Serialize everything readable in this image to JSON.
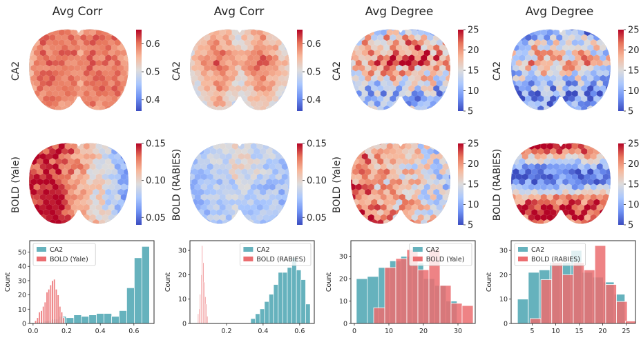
{
  "figure": {
    "column_titles": [
      "Avg Corr",
      "Avg Corr",
      "Avg Degree",
      "Avg Degree"
    ],
    "row_labels": [
      [
        "CA2",
        "CA2",
        "CA2",
        "CA2"
      ],
      [
        "BOLD (Yale)",
        "BOLD (RABIES)",
        "BOLD (Yale)",
        "BOLD (RABIES)"
      ]
    ],
    "colormap": [
      "#3b4cc0",
      "#6f92f3",
      "#aac7fd",
      "#dddcdc",
      "#f7b89c",
      "#e7745b",
      "#b40426"
    ]
  },
  "chart_data": [
    {
      "type": "heatmap",
      "panel": "row1-col1",
      "title": "Avg Corr",
      "row_label": "CA2",
      "colorbar": {
        "range": [
          0.36,
          0.65
        ],
        "ticks": [
          0.4,
          0.5,
          0.6
        ],
        "tick_labels": [
          "0.4",
          "0.5",
          "0.6"
        ]
      },
      "pattern": "hot-bilateral"
    },
    {
      "type": "heatmap",
      "panel": "row1-col2",
      "title": "Avg Corr",
      "row_label": "CA2",
      "colorbar": {
        "range": [
          0.36,
          0.65
        ],
        "ticks": [
          0.4,
          0.5,
          0.6
        ],
        "tick_labels": [
          "0.4",
          "0.5",
          "0.6"
        ]
      },
      "pattern": "warm-bilateral"
    },
    {
      "type": "heatmap",
      "panel": "row1-col3",
      "title": "Avg Degree",
      "row_label": "CA2",
      "colorbar": {
        "range": [
          5,
          25
        ],
        "ticks": [
          5,
          10,
          15,
          20,
          25
        ],
        "tick_labels": [
          "5",
          "10",
          "15",
          "20",
          "25"
        ]
      },
      "pattern": "mixed-bilateral"
    },
    {
      "type": "heatmap",
      "panel": "row1-col4",
      "title": "Avg Degree",
      "row_label": "CA2",
      "colorbar": {
        "range": [
          5,
          25
        ],
        "ticks": [
          5,
          10,
          15,
          20,
          25
        ],
        "tick_labels": [
          "5",
          "10",
          "15",
          "20",
          "25"
        ]
      },
      "pattern": "mixed-cool"
    },
    {
      "type": "heatmap",
      "panel": "row2-col1",
      "row_label": "BOLD (Yale)",
      "colorbar": {
        "range": [
          0.04,
          0.15
        ],
        "ticks": [
          0.05,
          0.1,
          0.15
        ],
        "tick_labels": [
          "0.05",
          "0.10",
          "0.15"
        ]
      },
      "pattern": "hot-left"
    },
    {
      "type": "heatmap",
      "panel": "row2-col2",
      "row_label": "BOLD (RABIES)",
      "colorbar": {
        "range": [
          0.04,
          0.15
        ],
        "ticks": [
          0.05,
          0.1,
          0.15
        ],
        "tick_labels": [
          "0.05",
          "0.10",
          "0.15"
        ]
      },
      "pattern": "cool"
    },
    {
      "type": "heatmap",
      "panel": "row2-col3",
      "row_label": "BOLD (Yale)",
      "colorbar": {
        "range": [
          5,
          25
        ],
        "ticks": [
          5,
          10,
          15,
          20,
          25
        ],
        "tick_labels": [
          "5",
          "10",
          "15",
          "20",
          "25"
        ]
      },
      "pattern": "hot-left-posterior"
    },
    {
      "type": "heatmap",
      "panel": "row2-col4",
      "row_label": "BOLD (RABIES)",
      "colorbar": {
        "range": [
          5,
          25
        ],
        "ticks": [
          5,
          10,
          15,
          20,
          25
        ],
        "tick_labels": [
          "5",
          "10",
          "15",
          "20",
          "25"
        ]
      },
      "pattern": "banded"
    },
    {
      "type": "bar",
      "panel": "row3-col1",
      "ylabel": "Count",
      "xlim": [
        -0.02,
        0.72
      ],
      "ylim": [
        0,
        58
      ],
      "xticks": [
        0.0,
        0.2,
        0.4,
        0.6
      ],
      "xtick_labels": [
        "0.0",
        "0.2",
        "0.4",
        "0.6"
      ],
      "yticks": [
        0,
        10,
        20,
        30,
        40,
        50
      ],
      "ytick_labels": [
        "0",
        "10",
        "20",
        "30",
        "40",
        "50"
      ],
      "legend_position": "top-left",
      "series": [
        {
          "name": "CA2",
          "color": "#66b2bd",
          "bin_width": 0.0455,
          "bins": [
            [
              0.04,
              1
            ],
            [
              0.085,
              2
            ],
            [
              0.13,
              3
            ],
            [
              0.175,
              5
            ],
            [
              0.22,
              4
            ],
            [
              0.265,
              6
            ],
            [
              0.31,
              5
            ],
            [
              0.355,
              6
            ],
            [
              0.4,
              7
            ],
            [
              0.445,
              7
            ],
            [
              0.49,
              5
            ],
            [
              0.535,
              9
            ],
            [
              0.58,
              25
            ],
            [
              0.625,
              46
            ],
            [
              0.67,
              54
            ]
          ]
        },
        {
          "name": "BOLD (Yale)",
          "color": "#eb6d70",
          "bin_width": 0.011,
          "bins": [
            [
              0.015,
              2
            ],
            [
              0.027,
              4
            ],
            [
              0.038,
              8
            ],
            [
              0.05,
              9
            ],
            [
              0.061,
              12
            ],
            [
              0.072,
              15
            ],
            [
              0.083,
              22
            ],
            [
              0.094,
              24
            ],
            [
              0.105,
              27
            ],
            [
              0.116,
              30
            ],
            [
              0.127,
              31
            ],
            [
              0.138,
              24
            ],
            [
              0.149,
              20
            ],
            [
              0.16,
              12
            ],
            [
              0.171,
              8
            ],
            [
              0.182,
              4
            ]
          ]
        }
      ]
    },
    {
      "type": "bar",
      "panel": "row3-col2",
      "ylabel": "Count",
      "xlim": [
        0.0,
        0.68
      ],
      "ylim": [
        0,
        34
      ],
      "xticks": [
        0.2,
        0.4,
        0.6
      ],
      "xtick_labels": [
        "0.2",
        "0.4",
        "0.6"
      ],
      "yticks": [
        0,
        10,
        20,
        30
      ],
      "ytick_labels": [
        "0",
        "10",
        "20",
        "30"
      ],
      "legend_position": "top-right",
      "series": [
        {
          "name": "CA2",
          "color": "#66b2bd",
          "bin_width": 0.0255,
          "bins": [
            [
              0.345,
              2
            ],
            [
              0.37,
              4
            ],
            [
              0.395,
              6
            ],
            [
              0.42,
              9
            ],
            [
              0.445,
              12
            ],
            [
              0.47,
              16
            ],
            [
              0.495,
              21
            ],
            [
              0.52,
              21
            ],
            [
              0.545,
              23
            ],
            [
              0.57,
              27
            ],
            [
              0.595,
              22
            ],
            [
              0.62,
              18
            ],
            [
              0.645,
              8
            ]
          ]
        },
        {
          "name": "BOLD (RABIES)",
          "color": "#eb6d70",
          "bin_width": 0.0055,
          "bins": [
            [
              0.045,
              4
            ],
            [
              0.051,
              6
            ],
            [
              0.056,
              12
            ],
            [
              0.062,
              20
            ],
            [
              0.067,
              32
            ],
            [
              0.073,
              25
            ],
            [
              0.078,
              17
            ],
            [
              0.084,
              11
            ],
            [
              0.089,
              8
            ],
            [
              0.095,
              3
            ]
          ]
        }
      ]
    },
    {
      "type": "bar",
      "panel": "row3-col3",
      "ylabel": "Count",
      "xlim": [
        -1,
        35
      ],
      "ylim": [
        0,
        37
      ],
      "xticks": [
        0,
        10,
        20,
        30
      ],
      "xtick_labels": [
        "0",
        "10",
        "20",
        "30"
      ],
      "yticks": [
        0,
        10,
        20,
        30
      ],
      "ytick_labels": [
        "0",
        "10",
        "20",
        "30"
      ],
      "legend_position": "top-right",
      "series": [
        {
          "name": "CA2",
          "color": "#66b2bd",
          "bin_width": 3.25,
          "bins": [
            [
              2.2,
              20
            ],
            [
              5.4,
              21
            ],
            [
              8.6,
              25
            ],
            [
              11.9,
              28
            ],
            [
              15.1,
              30
            ],
            [
              18.4,
              27
            ],
            [
              21.6,
              20
            ],
            [
              24.9,
              17
            ],
            [
              28.1,
              10
            ]
          ]
        },
        {
          "name": "BOLD (Yale)",
          "color": "#eb6d70",
          "bin_width": 3.2,
          "bins": [
            [
              7.2,
              7
            ],
            [
              10.4,
              25
            ],
            [
              13.6,
              29
            ],
            [
              16.8,
              33
            ],
            [
              20.0,
              24
            ],
            [
              23.2,
              33
            ],
            [
              26.4,
              17
            ],
            [
              29.6,
              9
            ],
            [
              32.8,
              8
            ]
          ]
        }
      ]
    },
    {
      "type": "bar",
      "panel": "row3-col4",
      "ylabel": "Count",
      "xlim": [
        0.5,
        27
      ],
      "ylim": [
        0,
        34
      ],
      "xticks": [
        5,
        10,
        15,
        20,
        25
      ],
      "xtick_labels": [
        "5",
        "10",
        "15",
        "20",
        "25"
      ],
      "yticks": [
        0,
        10,
        20,
        30
      ],
      "ytick_labels": [
        "0",
        "10",
        "20",
        "30"
      ],
      "legend_position": "top-left",
      "series": [
        {
          "name": "CA2",
          "color": "#66b2bd",
          "bin_width": 2.28,
          "bins": [
            [
              3.0,
              10
            ],
            [
              5.3,
              21
            ],
            [
              7.6,
              22
            ],
            [
              9.9,
              25
            ],
            [
              12.1,
              25
            ],
            [
              14.4,
              30
            ],
            [
              16.7,
              21
            ],
            [
              19.0,
              19
            ],
            [
              21.3,
              17
            ],
            [
              23.6,
              12
            ]
          ]
        },
        {
          "name": "BOLD (RABIES)",
          "color": "#eb6d70",
          "bin_width": 2.3,
          "bins": [
            [
              5.7,
              2
            ],
            [
              8.0,
              18
            ],
            [
              10.3,
              25
            ],
            [
              12.6,
              20
            ],
            [
              14.9,
              25
            ],
            [
              17.2,
              22
            ],
            [
              19.5,
              32
            ],
            [
              21.8,
              16
            ],
            [
              24.1,
              9
            ],
            [
              26.0,
              1
            ]
          ]
        }
      ]
    }
  ]
}
